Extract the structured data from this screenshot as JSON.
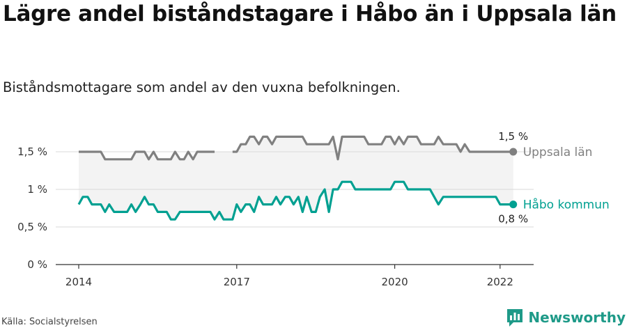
{
  "title": "Lägre andel biståndstagare i Håbo än i Uppsala län",
  "subtitle": "Biståndsmottagare som andel av den vuxna befolkningen.",
  "source": "Källa: Socialstyrelsen",
  "brand": {
    "name": "Newsworthy",
    "icon": "newsworthy-logo-icon"
  },
  "colors": {
    "uppsala": "#808080",
    "habo": "#00a091",
    "band": "#f3f3f3",
    "grid": "#d9d9d9"
  },
  "chart_data": {
    "type": "line",
    "title": "Lägre andel biståndstagare i Håbo än i Uppsala län",
    "subtitle": "Biståndsmottagare som andel av den vuxna befolkningen.",
    "xlabel": "",
    "ylabel": "",
    "ylim": [
      0,
      1.8
    ],
    "xlim": [
      2014.0,
      2022.25
    ],
    "y_ticks": [
      {
        "value": 0,
        "label": "0 %"
      },
      {
        "value": 0.5,
        "label": "0,5 %"
      },
      {
        "value": 1.0,
        "label": "1 %"
      },
      {
        "value": 1.5,
        "label": "1,5 %"
      }
    ],
    "x_ticks": [
      {
        "value": 2014,
        "label": "2014"
      },
      {
        "value": 2017,
        "label": "2017"
      },
      {
        "value": 2020,
        "label": "2020"
      },
      {
        "value": 2022,
        "label": "2022"
      }
    ],
    "grid": true,
    "series": [
      {
        "name": "Uppsala län",
        "color": "#808080",
        "end_value_label": "1,5 %",
        "x": [
          2014.0,
          2014.08,
          2014.17,
          2014.25,
          2014.33,
          2014.42,
          2014.5,
          2014.58,
          2014.67,
          2014.75,
          2014.83,
          2014.92,
          2015.0,
          2015.08,
          2015.17,
          2015.25,
          2015.33,
          2015.42,
          2015.5,
          2015.58,
          2015.67,
          2015.75,
          2015.83,
          2015.92,
          2016.0,
          2016.08,
          2016.17,
          2016.25,
          2016.33,
          2016.42,
          2016.5,
          2016.58,
          2016.67,
          2016.75,
          2016.83,
          2016.92,
          2017.0,
          2017.08,
          2017.17,
          2017.25,
          2017.33,
          2017.42,
          2017.5,
          2017.58,
          2017.67,
          2017.75,
          2017.83,
          2017.92,
          2018.0,
          2018.08,
          2018.17,
          2018.25,
          2018.33,
          2018.42,
          2018.5,
          2018.58,
          2018.67,
          2018.75,
          2018.83,
          2018.92,
          2019.0,
          2019.08,
          2019.17,
          2019.25,
          2019.33,
          2019.42,
          2019.5,
          2019.58,
          2019.67,
          2019.75,
          2019.83,
          2019.92,
          2020.0,
          2020.08,
          2020.17,
          2020.25,
          2020.33,
          2020.42,
          2020.5,
          2020.58,
          2020.67,
          2020.75,
          2020.83,
          2020.92,
          2021.0,
          2021.08,
          2021.17,
          2021.25,
          2021.33,
          2021.42,
          2021.5,
          2021.58,
          2021.67,
          2021.75,
          2021.83,
          2021.92,
          2022.0,
          2022.08,
          2022.17,
          2022.25
        ],
        "values": [
          1.5,
          1.5,
          1.5,
          1.5,
          1.5,
          1.5,
          1.4,
          1.4,
          1.4,
          1.4,
          1.4,
          1.4,
          1.4,
          1.5,
          1.5,
          1.5,
          1.4,
          1.5,
          1.4,
          1.4,
          1.4,
          1.4,
          1.5,
          1.4,
          1.4,
          1.5,
          1.4,
          1.5,
          1.5,
          1.5,
          1.5,
          1.5,
          null,
          null,
          null,
          1.5,
          1.5,
          1.6,
          1.6,
          1.7,
          1.7,
          1.6,
          1.7,
          1.7,
          1.6,
          1.7,
          1.7,
          1.7,
          1.7,
          1.7,
          1.7,
          1.7,
          1.6,
          1.6,
          1.6,
          1.6,
          1.6,
          1.6,
          1.7,
          1.4,
          1.7,
          1.7,
          1.7,
          1.7,
          1.7,
          1.7,
          1.6,
          1.6,
          1.6,
          1.6,
          1.7,
          1.7,
          1.6,
          1.7,
          1.6,
          1.7,
          1.7,
          1.7,
          1.6,
          1.6,
          1.6,
          1.6,
          1.7,
          1.6,
          1.6,
          1.6,
          1.6,
          1.5,
          1.6,
          1.5,
          1.5,
          1.5,
          1.5,
          1.5,
          1.5,
          1.5,
          1.5,
          1.5,
          1.5,
          1.5
        ]
      },
      {
        "name": "Håbo kommun",
        "color": "#00a091",
        "end_value_label": "0,8 %",
        "x": [
          2014.0,
          2014.08,
          2014.17,
          2014.25,
          2014.33,
          2014.42,
          2014.5,
          2014.58,
          2014.67,
          2014.75,
          2014.83,
          2014.92,
          2015.0,
          2015.08,
          2015.17,
          2015.25,
          2015.33,
          2015.42,
          2015.5,
          2015.58,
          2015.67,
          2015.75,
          2015.83,
          2015.92,
          2016.0,
          2016.08,
          2016.17,
          2016.25,
          2016.33,
          2016.42,
          2016.5,
          2016.58,
          2016.67,
          2016.75,
          2016.83,
          2016.92,
          2017.0,
          2017.08,
          2017.17,
          2017.25,
          2017.33,
          2017.42,
          2017.5,
          2017.58,
          2017.67,
          2017.75,
          2017.83,
          2017.92,
          2018.0,
          2018.08,
          2018.17,
          2018.25,
          2018.33,
          2018.42,
          2018.5,
          2018.58,
          2018.67,
          2018.75,
          2018.83,
          2018.92,
          2019.0,
          2019.08,
          2019.17,
          2019.25,
          2019.33,
          2019.42,
          2019.5,
          2019.58,
          2019.67,
          2019.75,
          2019.83,
          2019.92,
          2020.0,
          2020.08,
          2020.17,
          2020.25,
          2020.33,
          2020.42,
          2020.5,
          2020.58,
          2020.67,
          2020.75,
          2020.83,
          2020.92,
          2021.0,
          2021.08,
          2021.17,
          2021.25,
          2021.33,
          2021.42,
          2021.5,
          2021.58,
          2021.67,
          2021.75,
          2021.83,
          2021.92,
          2022.0,
          2022.08,
          2022.17,
          2022.25
        ],
        "values": [
          0.8,
          0.9,
          0.9,
          0.8,
          0.8,
          0.8,
          0.7,
          0.8,
          0.7,
          0.7,
          0.7,
          0.7,
          0.8,
          0.7,
          0.8,
          0.9,
          0.8,
          0.8,
          0.7,
          0.7,
          0.7,
          0.6,
          0.6,
          0.7,
          0.7,
          0.7,
          0.7,
          0.7,
          0.7,
          0.7,
          0.7,
          0.6,
          0.7,
          0.6,
          0.6,
          0.6,
          0.8,
          0.7,
          0.8,
          0.8,
          0.7,
          0.9,
          0.8,
          0.8,
          0.8,
          0.9,
          0.8,
          0.9,
          0.9,
          0.8,
          0.9,
          0.7,
          0.9,
          0.7,
          0.7,
          0.9,
          1.0,
          0.7,
          1.0,
          1.0,
          1.1,
          1.1,
          1.1,
          1.0,
          1.0,
          1.0,
          1.0,
          1.0,
          1.0,
          1.0,
          1.0,
          1.0,
          1.1,
          1.1,
          1.1,
          1.0,
          1.0,
          1.0,
          1.0,
          1.0,
          1.0,
          0.9,
          0.8,
          0.9,
          0.9,
          0.9,
          0.9,
          0.9,
          0.9,
          0.9,
          0.9,
          0.9,
          0.9,
          0.9,
          0.9,
          0.9,
          0.8,
          0.8,
          0.8,
          0.8
        ]
      }
    ]
  }
}
